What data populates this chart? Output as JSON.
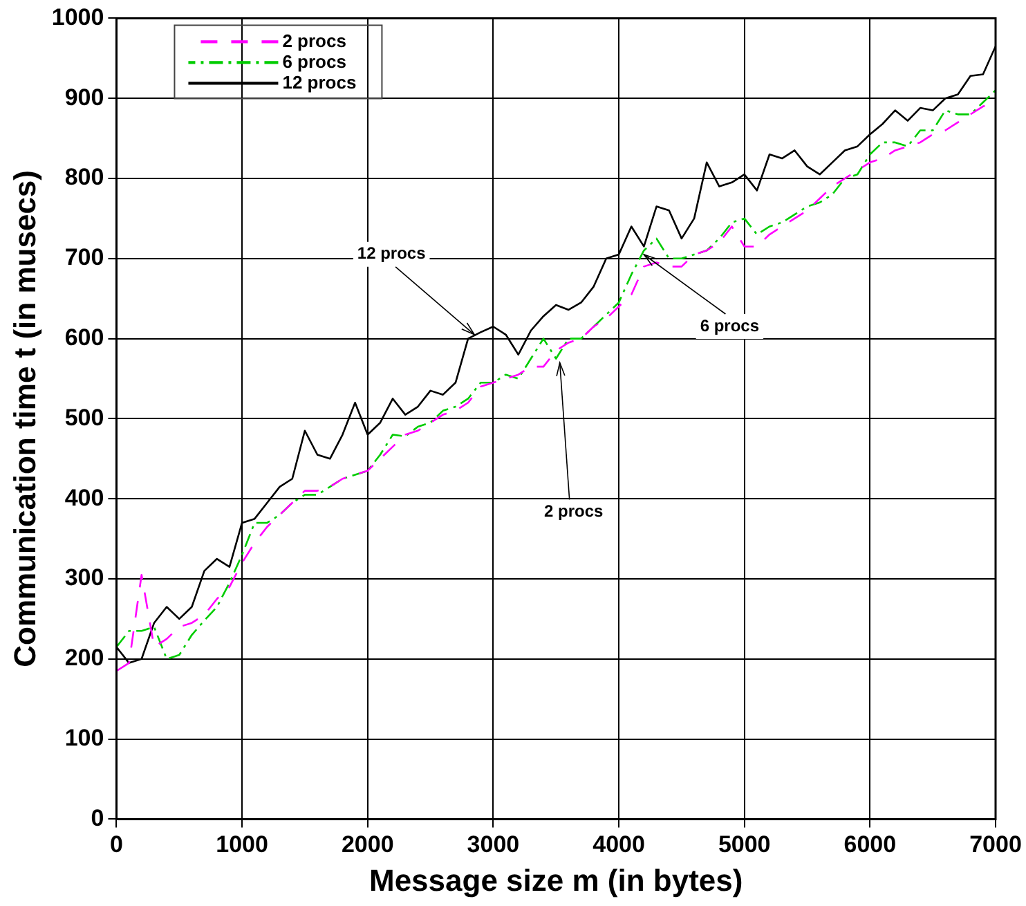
{
  "chart_data": {
    "type": "line",
    "xlabel": "Message size m (in bytes)",
    "ylabel": "Communication time t (in musecs)",
    "x": [
      0,
      100,
      200,
      300,
      400,
      500,
      600,
      700,
      800,
      900,
      1000,
      1100,
      1200,
      1300,
      1400,
      1500,
      1600,
      1700,
      1800,
      1900,
      2000,
      2100,
      2200,
      2300,
      2400,
      2500,
      2600,
      2700,
      2800,
      2900,
      3000,
      3100,
      3200,
      3300,
      3400,
      3500,
      3600,
      3700,
      3800,
      3900,
      4000,
      4100,
      4200,
      4300,
      4400,
      4500,
      4600,
      4700,
      4800,
      4900,
      5000,
      5100,
      5200,
      5300,
      5400,
      5500,
      5600,
      5700,
      5800,
      5900,
      6000,
      6100,
      6200,
      6300,
      6400,
      6500,
      6600,
      6700,
      6800,
      6900,
      7000
    ],
    "series": [
      {
        "name": "2 procs",
        "color": "#ff00ff",
        "line_style": "dashed",
        "values": [
          185,
          195,
          305,
          215,
          225,
          240,
          245,
          255,
          275,
          290,
          320,
          345,
          365,
          380,
          395,
          410,
          410,
          415,
          425,
          430,
          435,
          450,
          465,
          480,
          485,
          495,
          505,
          510,
          520,
          540,
          545,
          550,
          555,
          565,
          565,
          585,
          595,
          600,
          615,
          625,
          640,
          655,
          690,
          695,
          690,
          690,
          705,
          710,
          720,
          740,
          715,
          715,
          730,
          740,
          750,
          760,
          775,
          790,
          800,
          810,
          820,
          825,
          835,
          840,
          845,
          855,
          860,
          870,
          880,
          890,
          895
        ]
      },
      {
        "name": "6 procs",
        "color": "#00cc00",
        "line_style": "dashdot",
        "values": [
          215,
          235,
          235,
          240,
          200,
          205,
          230,
          248,
          265,
          295,
          330,
          370,
          370,
          380,
          395,
          405,
          405,
          415,
          425,
          430,
          435,
          455,
          480,
          478,
          490,
          495,
          510,
          515,
          525,
          545,
          545,
          555,
          550,
          575,
          600,
          575,
          600,
          600,
          615,
          630,
          645,
          680,
          710,
          725,
          700,
          700,
          705,
          710,
          725,
          745,
          750,
          730,
          740,
          745,
          755,
          765,
          770,
          780,
          800,
          805,
          830,
          845,
          845,
          840,
          860,
          860,
          885,
          880,
          880,
          895,
          910
        ]
      },
      {
        "name": "12 procs",
        "color": "#000000",
        "line_style": "solid",
        "values": [
          215,
          195,
          200,
          245,
          265,
          250,
          265,
          310,
          325,
          315,
          370,
          375,
          395,
          415,
          425,
          485,
          455,
          450,
          480,
          520,
          480,
          495,
          525,
          505,
          515,
          535,
          530,
          545,
          600,
          608,
          615,
          605,
          580,
          610,
          628,
          642,
          636,
          645,
          665,
          700,
          705,
          740,
          715,
          765,
          760,
          725,
          750,
          820,
          790,
          795,
          805,
          785,
          830,
          825,
          835,
          815,
          805,
          820,
          835,
          840,
          855,
          868,
          885,
          872,
          888,
          885,
          900,
          905,
          928,
          930,
          965
        ]
      }
    ],
    "xlim": [
      0,
      7000
    ],
    "xticks": [
      0,
      1000,
      2000,
      3000,
      4000,
      5000,
      6000,
      7000
    ],
    "ylim": [
      0,
      1000
    ],
    "yticks": [
      0,
      100,
      200,
      300,
      400,
      500,
      600,
      700,
      800,
      900,
      1000
    ],
    "grid": true,
    "legend": "top left",
    "marker": "none",
    "annotations": [
      {
        "text": "12 procs",
        "x": 2850,
        "y": 605
      },
      {
        "text": "6 procs",
        "x": 4200,
        "y": 705
      },
      {
        "text": "2 procs",
        "x": 3530,
        "y": 570
      }
    ]
  }
}
